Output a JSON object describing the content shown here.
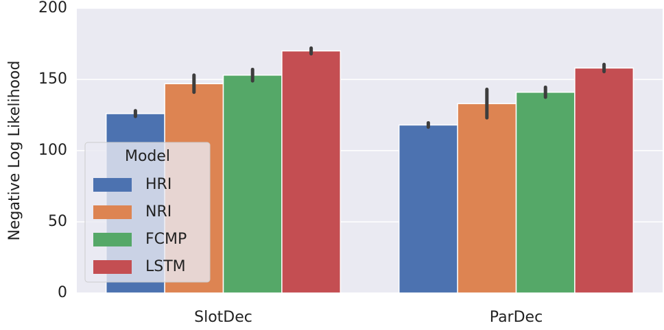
{
  "chart_data": {
    "type": "bar",
    "ylabel": "Negative Log Likelihood",
    "categories": [
      "SlotDec",
      "ParDec"
    ],
    "series": [
      {
        "name": "HRI",
        "color": "#4c72b0",
        "values": [
          126,
          118
        ],
        "errors": [
          2,
          1.5
        ]
      },
      {
        "name": "NRI",
        "color": "#dd8452",
        "values": [
          147,
          133
        ],
        "errors": [
          6,
          10
        ]
      },
      {
        "name": "FCMP",
        "color": "#55a868",
        "values": [
          153,
          141
        ],
        "errors": [
          4,
          3.5
        ]
      },
      {
        "name": "LSTM",
        "color": "#c44e52",
        "values": [
          170,
          158
        ],
        "errors": [
          2,
          2.5
        ]
      }
    ],
    "ylim": [
      0,
      200
    ],
    "yticks": [
      0,
      50,
      100,
      150,
      200
    ],
    "grid": true,
    "legend_title": "Model",
    "legend": "lower left"
  }
}
